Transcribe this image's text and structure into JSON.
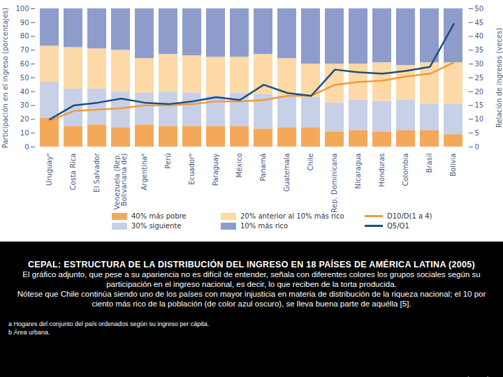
{
  "chart_data": {
    "type": "bar",
    "stacked": true,
    "title": "CEPAL: ESTRUCTURA DE LA DISTRIBUCIÓN DEL INGRESO EN 18 PAÍSES DE AMÉRICA LATINA (2005)",
    "caption": [
      "El gráfico adjunto, que pese a su apariencia no es difícil de entender, señala con diferentes colores los grupos sociales según su participación en el ingreso nacional, es decir, lo que reciben de la torta producida.",
      "Nótese que Chile continúa siendo uno de los países con mayor injusticia en materia de distribución de la riqueza nacional; el 10 por ciento más rico de la población (de color azul oscuro), se lleva buena parte de aquélla [5]."
    ],
    "notes": [
      "a Hogares del conjunto del país ordenados según su ingreso per cápita.",
      "b Área urbana."
    ],
    "credit": "ahernandezm",
    "ylabel": "Participación en el ingreso (porcentajes)",
    "y2label": "Relación de ingresos (veces)",
    "categories": [
      "Uruguayᵃ",
      "Costa Rica",
      "El Salvador",
      "Venezuela (Rep. Bolivariana de)",
      "Argentinaᵇ",
      "Perú",
      "Ecuadorᵇ",
      "Paraguay",
      "México",
      "Panamá",
      "Guatemala",
      "Chile",
      "Rep. Dominicana",
      "Nicaragua",
      "Honduras",
      "Colombia",
      "Brasil",
      "Bolivia"
    ],
    "series": [
      {
        "name": "40% más pobre",
        "type": "bar",
        "color": "#f4a95a",
        "values": [
          21,
          15,
          16,
          14,
          16,
          15,
          15,
          15,
          15,
          13,
          14,
          14,
          11,
          12,
          11,
          12,
          12,
          9
        ]
      },
      {
        "name": "30% siguiente",
        "type": "bar",
        "color": "#c8d0e8",
        "values": [
          26,
          27,
          26,
          26,
          23,
          25,
          24,
          22,
          24,
          25,
          23,
          22,
          21,
          22,
          22,
          22,
          19,
          22
        ]
      },
      {
        "name": "20% anterior al 10% más rico",
        "type": "bar",
        "color": "#fcd9a6",
        "values": [
          26,
          30,
          29,
          30,
          25,
          27,
          27,
          28,
          26,
          29,
          27,
          24,
          28,
          26,
          28,
          25,
          30,
          30
        ]
      },
      {
        "name": "10% más rico",
        "type": "bar",
        "color": "#8e9ccc",
        "values": [
          27,
          28,
          29,
          30,
          36,
          33,
          34,
          35,
          35,
          33,
          36,
          40,
          40,
          40,
          39,
          41,
          39,
          39
        ]
      },
      {
        "name": "D10/D(1 a 4)",
        "type": "line",
        "axis": "y2",
        "color": "#f29a3c",
        "values": [
          9.5,
          13,
          13.5,
          14,
          15,
          15,
          15.5,
          16.5,
          16.5,
          17,
          18.5,
          18.5,
          22.5,
          23.5,
          24,
          25.5,
          26.5,
          30.5
        ]
      },
      {
        "name": "Q5/Q1",
        "type": "line",
        "axis": "y2",
        "color": "#1d4f7a",
        "values": [
          10,
          15,
          16,
          17.5,
          16,
          15.5,
          16.5,
          18,
          17,
          22.5,
          19.5,
          18.5,
          28,
          27,
          26.5,
          27.5,
          29,
          44.5
        ]
      }
    ],
    "ylim": [
      0,
      100
    ],
    "yticks": [
      0,
      10,
      20,
      30,
      40,
      50,
      60,
      70,
      80,
      90,
      100
    ],
    "y2lim": [
      0,
      50
    ],
    "y2ticks": [
      0,
      5,
      10,
      15,
      20,
      25,
      30,
      35,
      40,
      45,
      50
    ],
    "legend": "bottom",
    "grid": false
  }
}
